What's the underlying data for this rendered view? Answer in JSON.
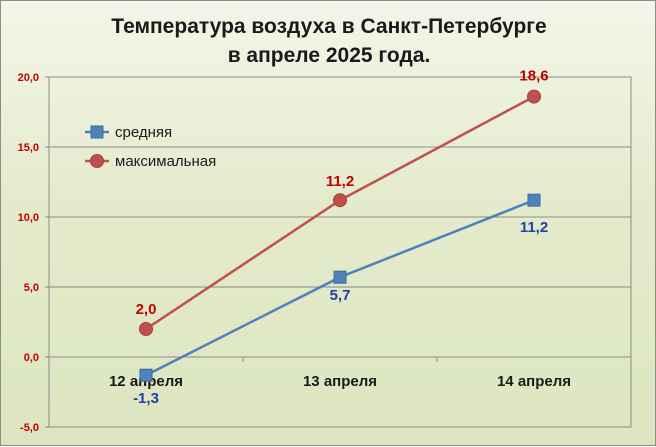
{
  "chart_data": {
    "type": "line",
    "title_lines": [
      "Температура воздуха в Санкт-Петербурге",
      "в апреле 2025 года."
    ],
    "categories": [
      "12 апреля",
      "13 апреля",
      "14 апреля"
    ],
    "yticks": [
      "-5,0",
      "0,0",
      "5,0",
      "10,0",
      "15,0",
      "20,0"
    ],
    "ylim": [
      -5,
      20
    ],
    "grid": true,
    "legend_position": "top-left",
    "series": [
      {
        "name": "средняя",
        "values": [
          -1.3,
          5.7,
          11.2
        ],
        "labels": [
          "-1,3",
          "5,7",
          "11,2"
        ],
        "color": "#4f81bd",
        "label_color": "#1f3fa8",
        "marker": "square"
      },
      {
        "name": "максимальная",
        "values": [
          2.0,
          11.2,
          18.6
        ],
        "labels": [
          "2,0",
          "11,2",
          "18,6"
        ],
        "color": "#c0504d",
        "label_color": "#c00000",
        "marker": "circle"
      }
    ]
  }
}
